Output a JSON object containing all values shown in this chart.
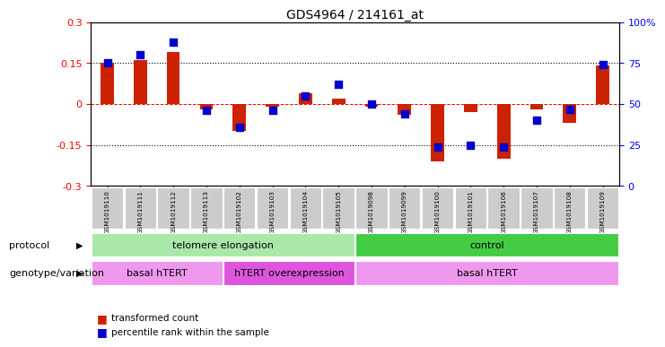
{
  "title": "GDS4964 / 214161_at",
  "samples": [
    "GSM1019110",
    "GSM1019111",
    "GSM1019112",
    "GSM1019113",
    "GSM1019102",
    "GSM1019103",
    "GSM1019104",
    "GSM1019105",
    "GSM1019098",
    "GSM1019099",
    "GSM1019100",
    "GSM1019101",
    "GSM1019106",
    "GSM1019107",
    "GSM1019108",
    "GSM1019109"
  ],
  "transformed_count": [
    0.15,
    0.16,
    0.19,
    -0.02,
    -0.1,
    -0.01,
    0.04,
    0.02,
    -0.01,
    -0.04,
    -0.21,
    -0.03,
    -0.2,
    -0.02,
    -0.07,
    0.14
  ],
  "percentile_rank": [
    75,
    80,
    88,
    46,
    36,
    46,
    55,
    62,
    50,
    44,
    24,
    25,
    24,
    40,
    47,
    74
  ],
  "ylim": [
    -0.3,
    0.3
  ],
  "y2lim": [
    0,
    100
  ],
  "yticks": [
    -0.3,
    -0.15,
    0,
    0.15,
    0.3
  ],
  "y2ticks": [
    0,
    25,
    50,
    75,
    100
  ],
  "dotted_lines": [
    -0.15,
    0.15
  ],
  "red_line": 0,
  "bar_color": "#cc2200",
  "dot_color": "#0000cc",
  "protocol_colors": [
    "#aae8aa",
    "#44cc44"
  ],
  "genotype_colors": [
    "#ee99ee",
    "#dd55dd",
    "#ee99ee"
  ],
  "protocol_labels": [
    [
      "telomere elongation",
      0,
      8
    ],
    [
      "control",
      8,
      16
    ]
  ],
  "genotype_labels": [
    [
      "basal hTERT",
      0,
      4
    ],
    [
      "hTERT overexpression",
      4,
      8
    ],
    [
      "basal hTERT",
      8,
      16
    ]
  ],
  "legend_items": [
    "transformed count",
    "percentile rank within the sample"
  ],
  "protocol_row_label": "protocol",
  "genotype_row_label": "genotype/variation",
  "bg_color": "#ffffff",
  "axis_bg": "#ffffff",
  "tick_label_bg": "#cccccc"
}
